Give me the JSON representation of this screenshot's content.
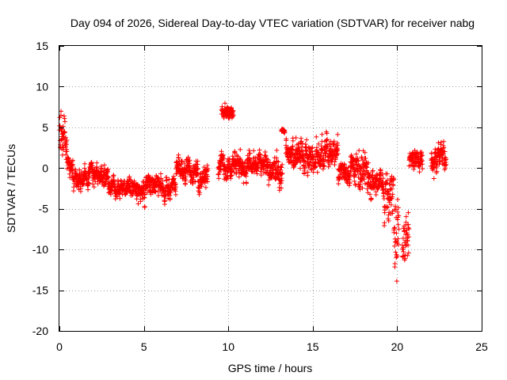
{
  "chart_data": {
    "type": "scatter",
    "title": "Day 094 of 2026, Sidereal Day-to-day VTEC variation (SDTVAR) for receiver nabg",
    "xlabel": "GPS time / hours",
    "ylabel": "SDTVAR / TECUs",
    "xlim": [
      0,
      25
    ],
    "ylim": [
      -20,
      15
    ],
    "xticks": [
      "0",
      "5",
      "10",
      "15",
      "20",
      "25"
    ],
    "yticks": [
      "15",
      "10",
      "5",
      "0",
      "-5",
      "-10",
      "-15",
      "-20"
    ],
    "grid": true,
    "marker": "+",
    "series": [
      {
        "name": "SDTVAR",
        "color": "#ff0000",
        "segments": [
          {
            "x0": 0.0,
            "x1": 0.12,
            "center": 4.5,
            "spread": 4.5
          },
          {
            "x0": 0.12,
            "x1": 0.45,
            "center": 3.0,
            "spread": 4.0
          },
          {
            "x0": 0.45,
            "x1": 0.8,
            "center": 0.5,
            "spread": 2.2
          },
          {
            "x0": 0.8,
            "x1": 2.0,
            "center": -1.2,
            "spread": 1.8
          },
          {
            "x0": 2.0,
            "x1": 3.0,
            "center": -1.0,
            "spread": 1.8
          },
          {
            "x0": 3.0,
            "x1": 4.2,
            "center": -2.5,
            "spread": 1.5
          },
          {
            "x0": 4.2,
            "x1": 5.1,
            "center": -2.8,
            "spread": 1.8
          },
          {
            "x0": 5.1,
            "x1": 6.2,
            "center": -2.0,
            "spread": 1.8
          },
          {
            "x0": 6.2,
            "x1": 6.9,
            "center": -2.5,
            "spread": 1.8
          },
          {
            "x0": 6.9,
            "x1": 8.0,
            "center": -0.2,
            "spread": 1.8
          },
          {
            "x0": 8.0,
            "x1": 8.8,
            "center": -1.2,
            "spread": 2.2
          },
          {
            "x0": 9.6,
            "x1": 10.3,
            "center": 7.0,
            "spread": 1.2
          },
          {
            "x0": 9.4,
            "x1": 12.2,
            "center": 0.3,
            "spread": 2.0
          },
          {
            "x0": 12.2,
            "x1": 13.2,
            "center": -0.5,
            "spread": 2.5
          },
          {
            "x0": 13.15,
            "x1": 13.35,
            "center": 4.6,
            "spread": 0.5
          },
          {
            "x0": 13.4,
            "x1": 14.6,
            "center": 1.5,
            "spread": 2.5
          },
          {
            "x0": 14.6,
            "x1": 16.5,
            "center": 1.5,
            "spread": 2.5
          },
          {
            "x0": 16.5,
            "x1": 17.3,
            "center": -0.5,
            "spread": 2.0
          },
          {
            "x0": 17.3,
            "x1": 18.4,
            "center": -0.5,
            "spread": 3.5
          },
          {
            "x0": 18.4,
            "x1": 19.2,
            "center": -2.0,
            "spread": 2.5
          },
          {
            "x0": 19.2,
            "x1": 19.8,
            "center": -2.0,
            "spread": 5.0
          },
          {
            "x0": 19.8,
            "x1": 20.1,
            "center": -9.0,
            "spread": 8.0
          },
          {
            "x0": 20.3,
            "x1": 20.7,
            "center": -9.0,
            "spread": 4.0
          },
          {
            "x0": 20.7,
            "x1": 21.5,
            "center": 0.8,
            "spread": 1.8
          },
          {
            "x0": 22.0,
            "x1": 22.9,
            "center": 1.5,
            "spread": 2.5
          }
        ]
      }
    ]
  }
}
